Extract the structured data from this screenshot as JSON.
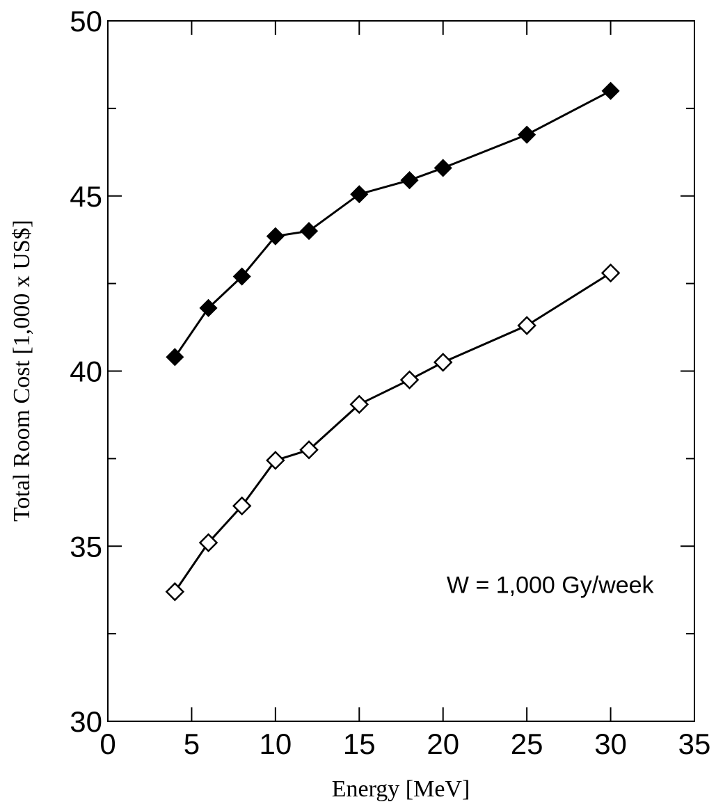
{
  "chart_data": {
    "type": "line",
    "title": "",
    "xlabel": "Energy [MeV]",
    "ylabel": "Total Room Cost [1,000 x US$]",
    "xlim": [
      0,
      35
    ],
    "ylim": [
      30,
      50
    ],
    "xticks": [
      0,
      5,
      10,
      15,
      20,
      25,
      30,
      35
    ],
    "yticks": [
      30,
      35,
      40,
      45,
      50
    ],
    "yminor_ticks": [
      32.5,
      37.5,
      42.5,
      47.5
    ],
    "grid": false,
    "x": [
      4,
      6,
      8,
      10,
      12,
      15,
      18,
      20,
      25,
      30
    ],
    "series": [
      {
        "marker": "filled-diamond",
        "color": "#000000",
        "values": [
          40.4,
          41.8,
          42.7,
          43.85,
          44.0,
          45.05,
          45.45,
          45.8,
          46.75,
          48.0
        ]
      },
      {
        "marker": "open-diamond",
        "color": "#000000",
        "values": [
          33.7,
          35.1,
          36.15,
          37.45,
          37.75,
          39.05,
          39.75,
          40.25,
          41.3,
          42.8
        ]
      }
    ],
    "annotations": [
      {
        "text": "W = 1,000 Gy/week",
        "x": 30,
        "y": 33.9
      }
    ]
  }
}
